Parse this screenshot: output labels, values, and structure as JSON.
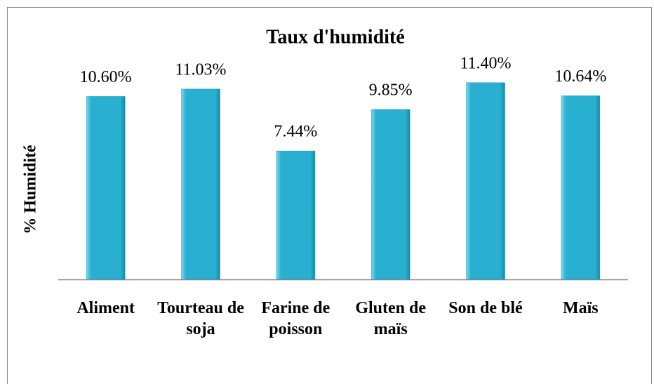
{
  "chart_data": {
    "type": "bar",
    "title": "Taux d'humidité",
    "y_label": "% Humidité",
    "categories": [
      "Aliment",
      "Tourteau de soja",
      "Farine de poisson",
      "Gluten de maïs",
      "Son de blé",
      "Maïs"
    ],
    "values": [
      10.6,
      11.03,
      7.44,
      9.85,
      11.4,
      10.64
    ],
    "value_labels": [
      "10.60%",
      "11.03%",
      "7.44%",
      "9.85%",
      "11.40%",
      "10.64%"
    ],
    "color": "#29b0d0",
    "ylim": [
      0,
      12
    ]
  }
}
